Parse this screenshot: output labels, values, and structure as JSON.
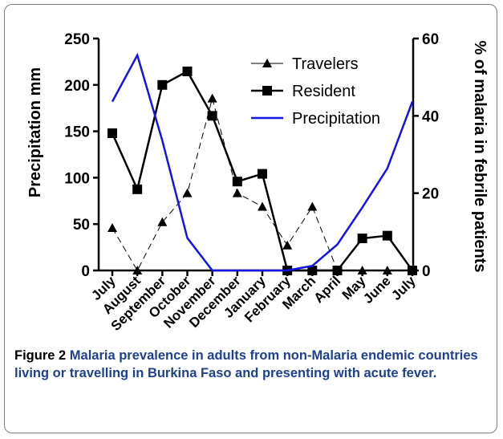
{
  "figure": {
    "caption_label": "Figure 2",
    "caption_text": "Malaria prevalence in adults from non-Malaria endemic countries living or travelling in Burkina Faso and presenting with acute fever."
  },
  "chart_data": {
    "type": "line",
    "categories": [
      "July",
      "August",
      "September",
      "October",
      "November",
      "December",
      "January",
      "February",
      "March",
      "April",
      "May",
      "June",
      "July"
    ],
    "ylabel_left": "Precipitation mm",
    "ylabel_right": "% of malaria in febrile patients",
    "ylim_left": [
      0,
      250
    ],
    "ylim_right": [
      0,
      60
    ],
    "yticks_left": [
      0,
      50,
      100,
      150,
      200,
      250
    ],
    "yticks_right": [
      0,
      20,
      40,
      60
    ],
    "legend_position": "top-right",
    "grid": false,
    "series": [
      {
        "name": "Travelers",
        "axis": "right",
        "style": "dashed",
        "marker": "triangle",
        "color": "#000000",
        "values": [
          11,
          0,
          12.5,
          20,
          44.5,
          20,
          16.5,
          6.5,
          16.5,
          0,
          0,
          0,
          0
        ]
      },
      {
        "name": "Resident",
        "axis": "right",
        "style": "solid-thick",
        "marker": "square",
        "color": "#000000",
        "values": [
          35.5,
          21,
          48,
          51.5,
          40,
          23,
          25,
          0,
          0,
          0,
          8.3,
          9,
          0
        ]
      },
      {
        "name": "Precipitation",
        "axis": "left",
        "style": "solid",
        "marker": "none",
        "color": "#1414e6",
        "values": [
          182,
          232,
          140,
          35,
          0,
          0,
          0,
          0,
          5,
          28,
          68,
          110,
          182
        ]
      }
    ]
  }
}
